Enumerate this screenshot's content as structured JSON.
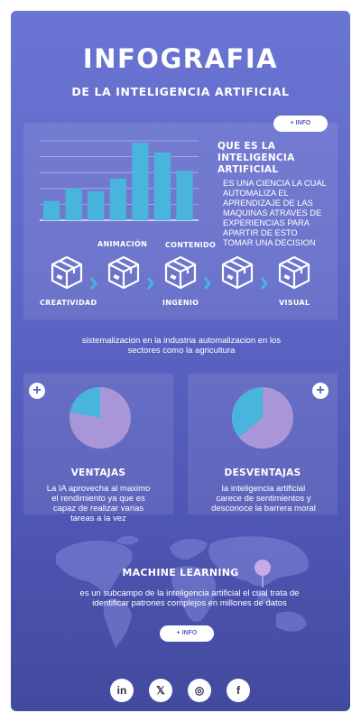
{
  "header": {
    "title": "INFOGRAFIA",
    "subtitle": "DE LA INTELIGENCIA ARTIFICIAL"
  },
  "intro": {
    "info_button": "+ INFO",
    "heading_lines": [
      "QUE ES LA",
      "INTELIGENCIA",
      "ARTIFICIAL"
    ],
    "body_lines": [
      "ES UNA CIENCIA LA CUAL",
      "AUTOMALIZA EL",
      "APRENDIZAJE DE LAS",
      "MAQUINAS ATRAVES DE",
      "EXPERIENCIAS PARA",
      "APARTIR DE ESTO",
      "TOMAR UNA DECISION"
    ]
  },
  "chart_data": {
    "type": "bar",
    "values": [
      2,
      3.3,
      3,
      4.3,
      8,
      7,
      5.1
    ],
    "ylim": [
      0,
      8.2
    ],
    "grid": true,
    "bar_color": "#49b4dc"
  },
  "process": {
    "top_labels": [
      "ANIMACIÓN",
      "CONTENIDO"
    ],
    "bottom_labels": [
      "CREATIVIDAD",
      "INGENIO",
      "VISUAL"
    ],
    "icon": "box-icon",
    "step_count": 5
  },
  "tagline": "sistemalizacion en la industria automalizacion en los sectores como la agricultura",
  "advantages": {
    "heading": "VENTAJAS",
    "text": "La IA aprovecha al maximo el rendimiento ya que es capaz de realizar varias tareas a la vez",
    "pie": {
      "main": 0.78,
      "accent": 0.22
    }
  },
  "disadvantages": {
    "heading": "DESVENTAJAS",
    "text": "la inteligencia artificial carece de sentimientos y desconoce la barrera moral",
    "pie": {
      "main": 0.64,
      "accent": 0.36
    }
  },
  "machine_learning": {
    "heading": "MACHINE LEARNING",
    "text": "es un subcampo de la inteligencia artificial el cual trata de identificar patrones complejos en millones de datos",
    "info_button": "+ INFO"
  },
  "socials": [
    {
      "icon": "linkedin-icon",
      "glyph": "in"
    },
    {
      "icon": "x-icon",
      "glyph": "𝕏"
    },
    {
      "icon": "instagram-icon",
      "glyph": "◎"
    },
    {
      "icon": "facebook-icon",
      "glyph": "f"
    }
  ],
  "colors": {
    "accent_blue": "#49b4dc",
    "pie_main": "#a896d8",
    "pie_accent": "#49b4dc",
    "pin": "#c9a9e6"
  }
}
